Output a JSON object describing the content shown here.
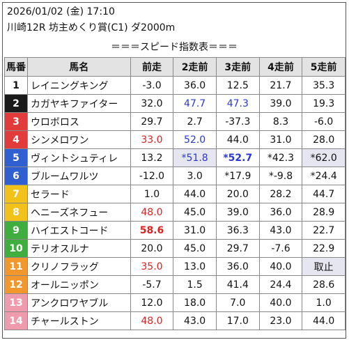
{
  "header": {
    "date_line": "2026/01/02 (金) 17:10",
    "race_line": "川崎12R 坊主めくり賞(C1) ダ2000m",
    "subtitle": "＝＝＝スピード指数表＝＝＝"
  },
  "table": {
    "columns": [
      "馬番",
      "馬名",
      "前走",
      "2走前",
      "3走前",
      "4走前",
      "5走前"
    ],
    "rows": [
      {
        "num": "1",
        "name": "レイニングキング",
        "cells": [
          {
            "v": "-3.0"
          },
          {
            "v": "36.0"
          },
          {
            "v": "12.5"
          },
          {
            "v": "21.7"
          },
          {
            "v": "35.3"
          }
        ]
      },
      {
        "num": "2",
        "name": "カガヤキファイター",
        "cells": [
          {
            "v": "32.0"
          },
          {
            "v": "47.7",
            "color": "blue"
          },
          {
            "v": "47.3",
            "color": "blue"
          },
          {
            "v": "39.0"
          },
          {
            "v": "19.3"
          }
        ]
      },
      {
        "num": "3",
        "name": "ウロボロス",
        "cells": [
          {
            "v": "29.7"
          },
          {
            "v": "2.7"
          },
          {
            "v": "-37.3"
          },
          {
            "v": "8.3"
          },
          {
            "v": "-6.0"
          }
        ]
      },
      {
        "num": "4",
        "name": "シンメロワン",
        "cells": [
          {
            "v": "33.0",
            "color": "red"
          },
          {
            "v": "52.0",
            "color": "blue"
          },
          {
            "v": "44.0"
          },
          {
            "v": "31.0"
          },
          {
            "v": "28.0"
          }
        ]
      },
      {
        "num": "5",
        "name": "ヴィントシュティレ",
        "cells": [
          {
            "v": "13.2"
          },
          {
            "v": "*51.8",
            "color": "blue",
            "shade": true
          },
          {
            "v": "*52.7",
            "color": "blue",
            "bold": true
          },
          {
            "v": "*42.3"
          },
          {
            "v": "*62.0",
            "shade": true
          }
        ]
      },
      {
        "num": "6",
        "name": "ブルームワルツ",
        "cells": [
          {
            "v": "-12.0"
          },
          {
            "v": "3.0"
          },
          {
            "v": "*17.9"
          },
          {
            "v": "*-9.8"
          },
          {
            "v": "*24.4"
          }
        ]
      },
      {
        "num": "7",
        "name": "セラード",
        "cells": [
          {
            "v": "1.0"
          },
          {
            "v": "44.0"
          },
          {
            "v": "20.0"
          },
          {
            "v": "28.2"
          },
          {
            "v": "44.7"
          }
        ]
      },
      {
        "num": "8",
        "name": "ヘニーズネフュー",
        "cells": [
          {
            "v": "48.0",
            "color": "red"
          },
          {
            "v": "45.0"
          },
          {
            "v": "39.0"
          },
          {
            "v": "36.0"
          },
          {
            "v": "28.9"
          }
        ]
      },
      {
        "num": "9",
        "name": "ハイエストコード",
        "cells": [
          {
            "v": "58.6",
            "color": "red",
            "bold": true
          },
          {
            "v": "31.0"
          },
          {
            "v": "36.3"
          },
          {
            "v": "43.0"
          },
          {
            "v": "22.7"
          }
        ]
      },
      {
        "num": "10",
        "name": "テリオスルナ",
        "cells": [
          {
            "v": "20.0"
          },
          {
            "v": "45.0"
          },
          {
            "v": "29.7"
          },
          {
            "v": "-7.6"
          },
          {
            "v": "22.9"
          }
        ]
      },
      {
        "num": "11",
        "name": "クリノフラッグ",
        "cells": [
          {
            "v": "35.0",
            "color": "red"
          },
          {
            "v": "13.0"
          },
          {
            "v": "36.0"
          },
          {
            "v": "40.0"
          },
          {
            "v": "取止",
            "shade": true
          }
        ]
      },
      {
        "num": "12",
        "name": "オールニッポン",
        "cells": [
          {
            "v": "-5.7"
          },
          {
            "v": "1.5"
          },
          {
            "v": "41.4"
          },
          {
            "v": "24.4"
          },
          {
            "v": "28.6"
          }
        ]
      },
      {
        "num": "13",
        "name": "アンクロワヤブル",
        "cells": [
          {
            "v": "12.0"
          },
          {
            "v": "18.0"
          },
          {
            "v": "7.0"
          },
          {
            "v": "40.0"
          },
          {
            "v": "1.0"
          }
        ]
      },
      {
        "num": "14",
        "name": "チャールストン",
        "cells": [
          {
            "v": "48.0",
            "color": "red"
          },
          {
            "v": "43.0"
          },
          {
            "v": "17.0"
          },
          {
            "v": "23.0"
          },
          {
            "v": "44.0"
          }
        ]
      }
    ]
  },
  "colors": {
    "red": "#e02020",
    "blue": "#2838d8",
    "shade": "#e6e6f0",
    "header_bg": "#e3e3e3",
    "gate_colors": [
      "#ffffff",
      "#1a1a1a",
      "#e23b3b",
      "#e23b3b",
      "#2f5fd0",
      "#2f5fd0",
      "#f2c21a",
      "#f2c21a",
      "#3fae3f",
      "#3fae3f",
      "#f2962e",
      "#f2962e",
      "#f09aae",
      "#f09aae"
    ],
    "gate_text": [
      "#111111",
      "#ffffff",
      "#ffffff",
      "#ffffff",
      "#ffffff",
      "#ffffff",
      "#ffffff",
      "#ffffff",
      "#ffffff",
      "#ffffff",
      "#ffffff",
      "#ffffff",
      "#ffffff",
      "#ffffff"
    ]
  }
}
